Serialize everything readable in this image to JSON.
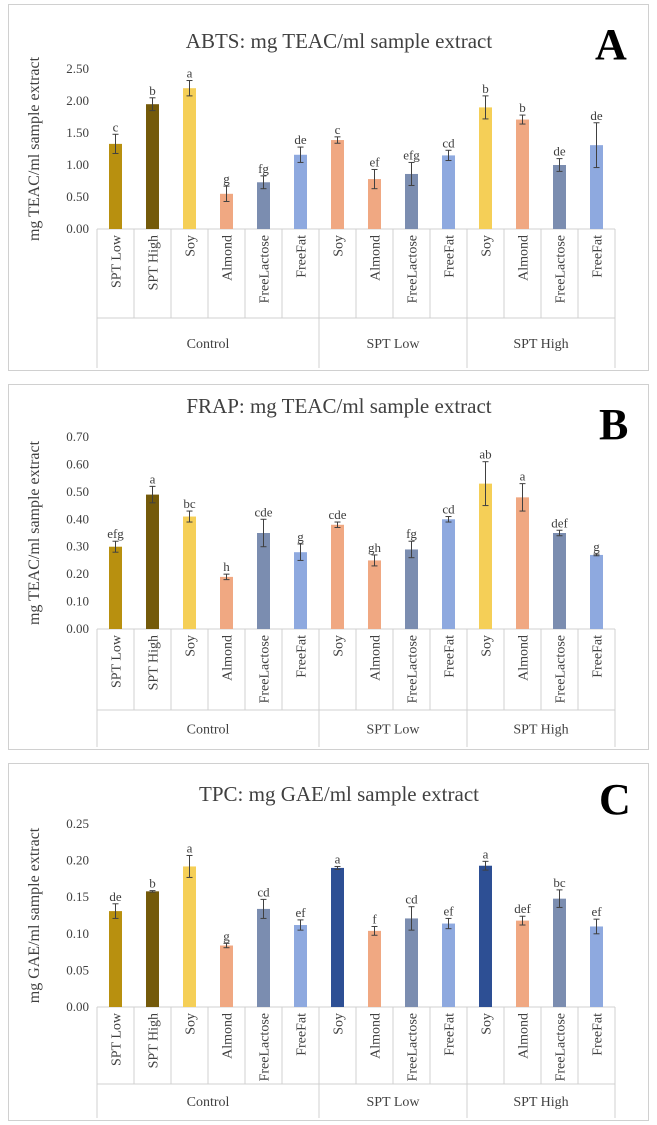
{
  "colors": {
    "Control": [
      "#b8900f",
      "#745a0a",
      "#f5cf57",
      "#f0a882",
      "#7b8db0",
      "#8ea9df"
    ],
    "SPT Low AC": [
      "#f0a882",
      "#f0a882",
      "#7b8db0",
      "#8ea9df"
    ],
    "SPT High AC": [
      "#f5cf57",
      "#f0a882",
      "#7b8db0",
      "#8ea9df"
    ],
    "SPT Low C": [
      "#2d4f94",
      "#f0a882",
      "#7b8db0",
      "#8ea9df"
    ],
    "SPT High C": [
      "#2d4f94",
      "#f0a882",
      "#7b8db0",
      "#8ea9df"
    ]
  },
  "chart_data": [
    {
      "panel": "A",
      "type": "bar",
      "title": "ABTS: mg TEAC/ml sample extract",
      "ylabel": "mg TEAC/ml sample extract",
      "ylim": [
        0,
        2.5
      ],
      "yticks": [
        "0.00",
        "0.50",
        "1.00",
        "1.50",
        "2.00",
        "2.50"
      ],
      "groups": [
        {
          "name": "Control",
          "categories": [
            "SPT Low",
            "SPT High",
            "Soy",
            "Almond",
            "FreeLactose",
            "FreeFat"
          ],
          "values": [
            1.33,
            1.95,
            2.2,
            0.55,
            0.73,
            1.16
          ],
          "errors": [
            0.15,
            0.1,
            0.12,
            0.12,
            0.1,
            0.12
          ],
          "letters": [
            "c",
            "b",
            "a",
            "g",
            "fg",
            "de"
          ]
        },
        {
          "name": "SPT Low",
          "categories": [
            "Soy",
            "Almond",
            "FreeLactose",
            "FreeFat"
          ],
          "values": [
            1.39,
            0.78,
            0.86,
            1.15
          ],
          "errors": [
            0.05,
            0.15,
            0.18,
            0.08
          ],
          "letters": [
            "c",
            "ef",
            "efg",
            "cd"
          ]
        },
        {
          "name": "SPT High",
          "categories": [
            "Soy",
            "Almond",
            "FreeLactose",
            "FreeFat"
          ],
          "values": [
            1.9,
            1.71,
            1.0,
            1.31
          ],
          "errors": [
            0.18,
            0.07,
            0.1,
            0.35
          ],
          "letters": [
            "b",
            "b",
            "de",
            "de"
          ]
        }
      ]
    },
    {
      "panel": "B",
      "type": "bar",
      "title": "FRAP: mg TEAC/ml sample extract",
      "ylabel": "mg TEAC/ml sample extract",
      "ylim": [
        0,
        0.7
      ],
      "yticks": [
        "0.00",
        "0.10",
        "0.20",
        "0.30",
        "0.40",
        "0.50",
        "0.60",
        "0.70"
      ],
      "groups": [
        {
          "name": "Control",
          "categories": [
            "SPT Low",
            "SPT High",
            "Soy",
            "Almond",
            "FreeLactose",
            "FreeFat"
          ],
          "values": [
            0.3,
            0.49,
            0.41,
            0.19,
            0.35,
            0.28
          ],
          "errors": [
            0.02,
            0.03,
            0.02,
            0.01,
            0.05,
            0.03
          ],
          "letters": [
            "efg",
            "a",
            "bc",
            "h",
            "cde",
            "g"
          ]
        },
        {
          "name": "SPT Low",
          "categories": [
            "Soy",
            "Almond",
            "FreeLactose",
            "FreeFat"
          ],
          "values": [
            0.38,
            0.25,
            0.29,
            0.4
          ],
          "errors": [
            0.01,
            0.02,
            0.03,
            0.01
          ],
          "letters": [
            "cde",
            "gh",
            "fg",
            "cd"
          ]
        },
        {
          "name": "SPT High",
          "categories": [
            "Soy",
            "Almond",
            "FreeLactose",
            "FreeFat"
          ],
          "values": [
            0.53,
            0.48,
            0.35,
            0.27
          ],
          "errors": [
            0.08,
            0.05,
            0.01,
            0.003
          ],
          "letters": [
            "ab",
            "a",
            "def",
            "g"
          ]
        }
      ]
    },
    {
      "panel": "C",
      "type": "bar",
      "title": "TPC: mg GAE/ml sample extract",
      "ylabel": "mg GAE/ml sample extract",
      "ylim": [
        0,
        0.25
      ],
      "yticks": [
        "0.00",
        "0.05",
        "0.10",
        "0.15",
        "0.20",
        "0.25"
      ],
      "groups": [
        {
          "name": "Control",
          "categories": [
            "SPT Low",
            "SPT High",
            "Soy",
            "Almond",
            "FreeLactose",
            "FreeFat"
          ],
          "values": [
            0.131,
            0.158,
            0.192,
            0.084,
            0.134,
            0.112
          ],
          "errors": [
            0.01,
            0.001,
            0.015,
            0.003,
            0.013,
            0.007
          ],
          "letters": [
            "de",
            "b",
            "a",
            "g",
            "cd",
            "ef"
          ]
        },
        {
          "name": "SPT Low",
          "categories": [
            "Soy",
            "Almond",
            "FreeLactose",
            "FreeFat"
          ],
          "values": [
            0.19,
            0.104,
            0.121,
            0.114
          ],
          "errors": [
            0.002,
            0.006,
            0.016,
            0.007
          ],
          "letters": [
            "a",
            "f",
            "cd",
            "ef"
          ]
        },
        {
          "name": "SPT High",
          "categories": [
            "Soy",
            "Almond",
            "FreeLactose",
            "FreeFat"
          ],
          "values": [
            0.193,
            0.118,
            0.148,
            0.11
          ],
          "errors": [
            0.006,
            0.006,
            0.012,
            0.01
          ],
          "letters": [
            "a",
            "def",
            "bc",
            "ef"
          ]
        }
      ]
    }
  ]
}
